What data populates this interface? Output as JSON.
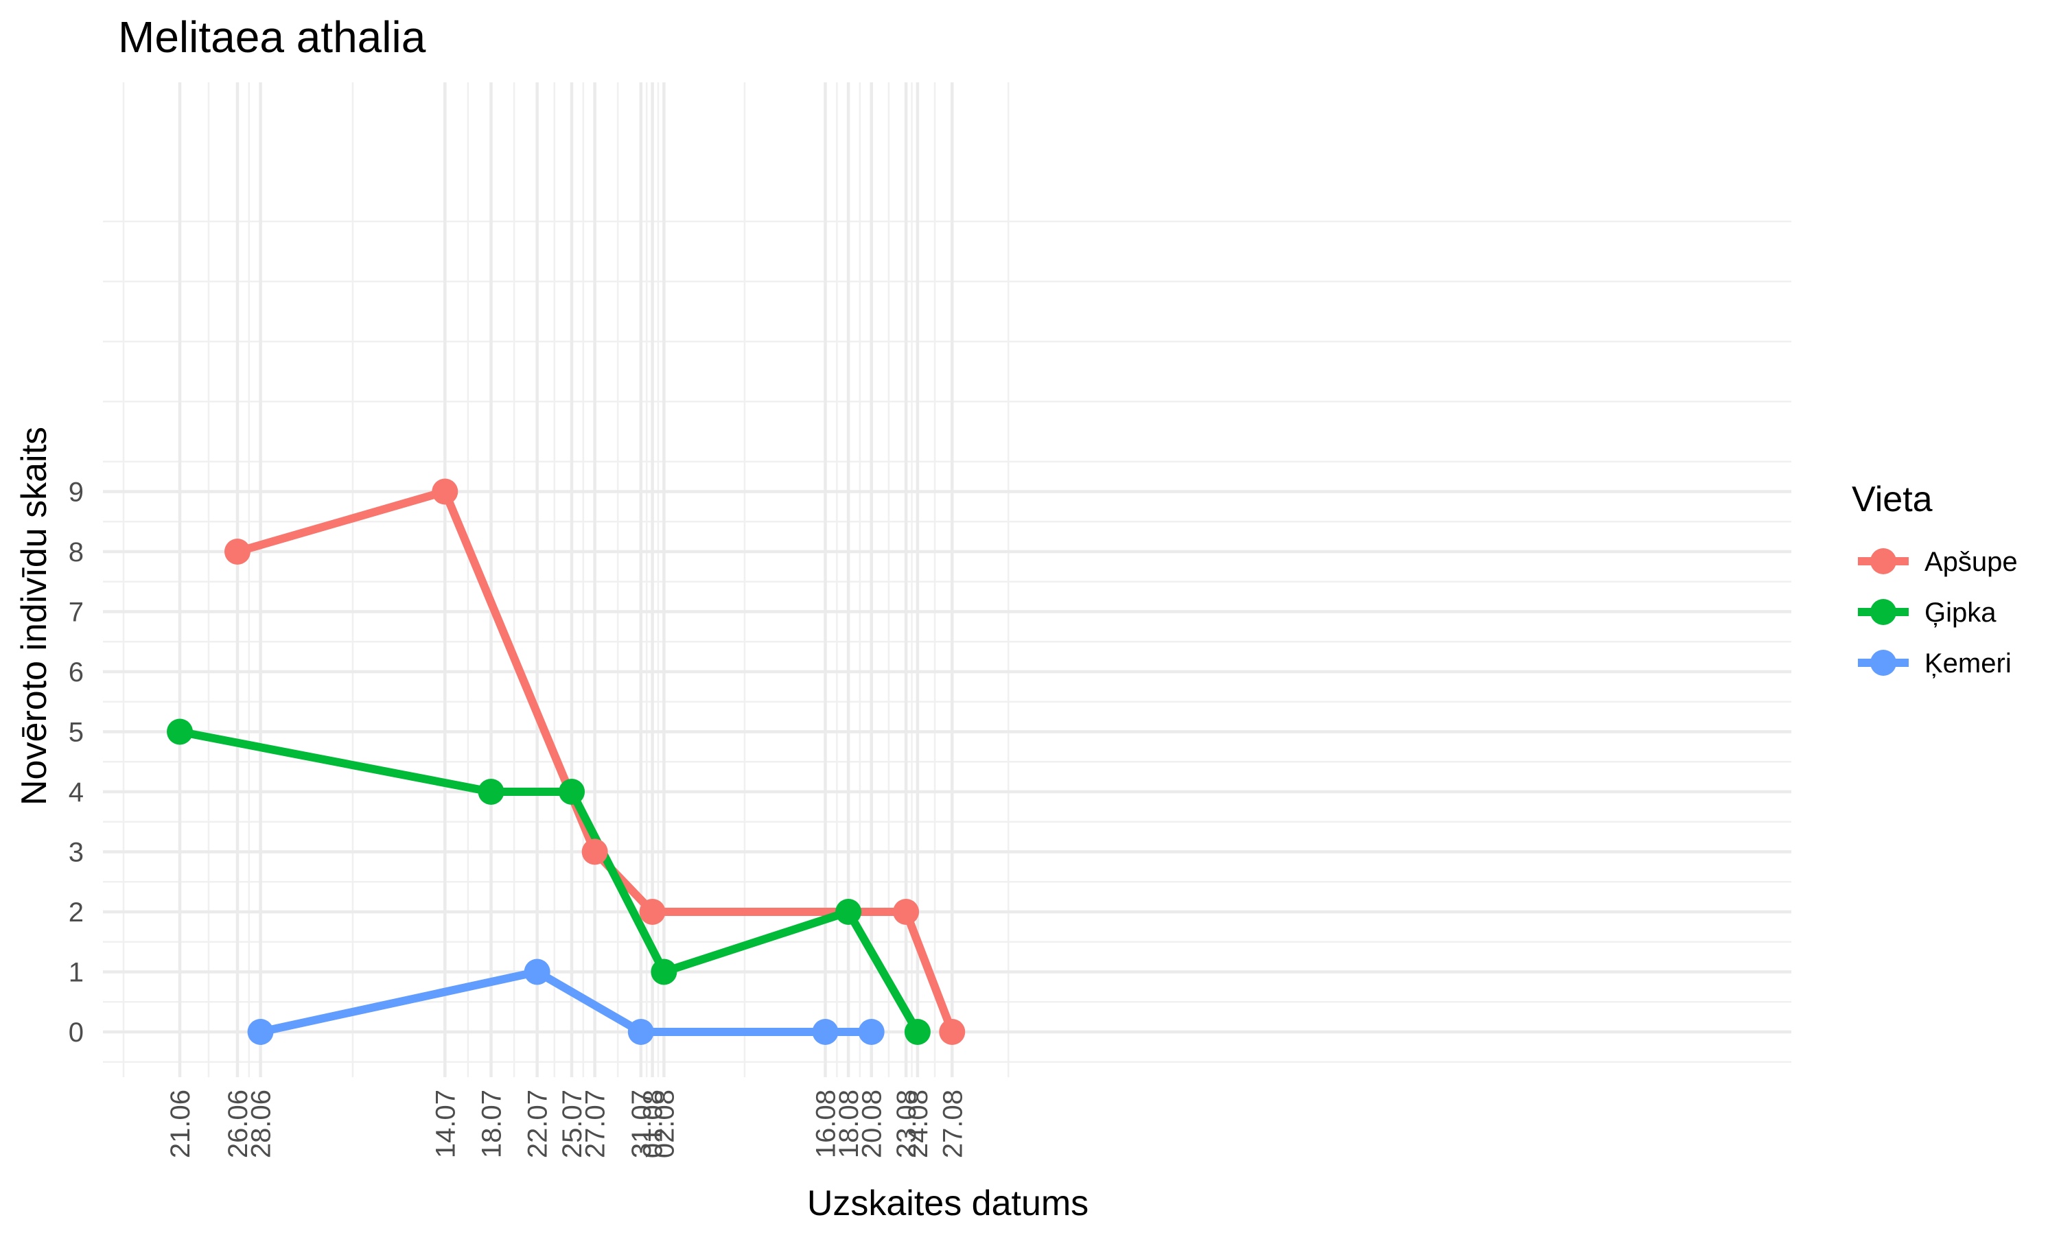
{
  "chart_data": {
    "type": "line",
    "title": "Melitaea athalia",
    "xlabel": "Uzskaites datums",
    "ylabel": "Novēroto indivīdu skaits",
    "x_tick_labels": [
      "21.06",
      "26.06",
      "28.06",
      "14.07",
      "18.07",
      "22.07",
      "25.07",
      "27.07",
      "31.07",
      "01.08",
      "02.08",
      "16.08",
      "18.08",
      "20.08",
      "23.08",
      "24.08",
      "27.08"
    ],
    "y_ticks": [
      0,
      1,
      2,
      3,
      4,
      5,
      6,
      7,
      8,
      9
    ],
    "ylim": [
      -0.75,
      13.8
    ],
    "grid": true,
    "legend": {
      "title": "Vieta",
      "position": "right"
    },
    "series": [
      {
        "name": "Apšupe",
        "color": "#F8766D",
        "points": [
          {
            "x": "26.06",
            "y": 8
          },
          {
            "x": "14.07",
            "y": 9
          },
          {
            "x": "27.07",
            "y": 3
          },
          {
            "x": "01.08",
            "y": 2
          },
          {
            "x": "23.08",
            "y": 2
          },
          {
            "x": "27.08",
            "y": 0
          }
        ]
      },
      {
        "name": "Ģipka",
        "color": "#00BA38",
        "points": [
          {
            "x": "21.06",
            "y": 5
          },
          {
            "x": "18.07",
            "y": 4
          },
          {
            "x": "25.07",
            "y": 4
          },
          {
            "x": "02.08",
            "y": 1
          },
          {
            "x": "18.08",
            "y": 2
          },
          {
            "x": "24.08",
            "y": 0
          }
        ]
      },
      {
        "name": "Ķemeri",
        "color": "#619CFF",
        "points": [
          {
            "x": "28.06",
            "y": 0
          },
          {
            "x": "22.07",
            "y": 1
          },
          {
            "x": "31.07",
            "y": 0
          },
          {
            "x": "16.08",
            "y": 0
          },
          {
            "x": "20.08",
            "y": 0
          }
        ]
      }
    ]
  }
}
